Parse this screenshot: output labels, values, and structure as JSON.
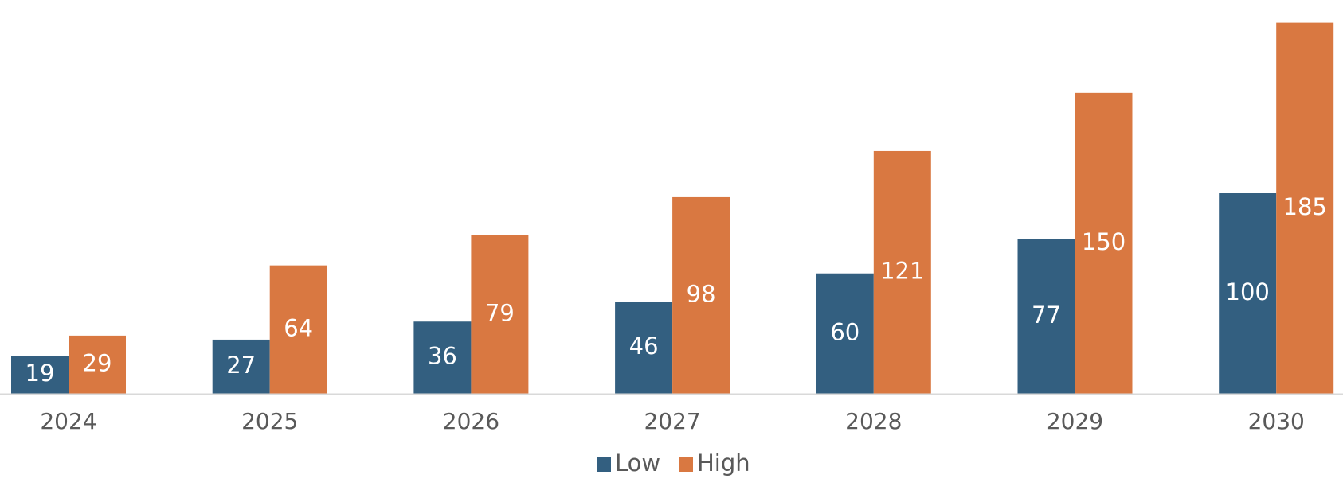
{
  "chart_data": {
    "type": "bar",
    "title": "",
    "xlabel": "",
    "ylabel": "",
    "categories": [
      "2024",
      "2025",
      "2026",
      "2027",
      "2028",
      "2029",
      "2030"
    ],
    "series": [
      {
        "name": "Low",
        "color": "#335f80",
        "values": [
          19,
          27,
          36,
          46,
          60,
          77,
          100
        ]
      },
      {
        "name": "High",
        "color": "#d97841",
        "values": [
          29,
          64,
          79,
          98,
          121,
          150,
          185
        ]
      }
    ],
    "ylim": [
      0,
      190
    ],
    "data_labels": true,
    "grid": false,
    "legend": {
      "position": "bottom"
    },
    "colors": {
      "axis_line": "#d9d9d9",
      "tick_text": "#595959",
      "label_text": "#ffffff"
    }
  }
}
